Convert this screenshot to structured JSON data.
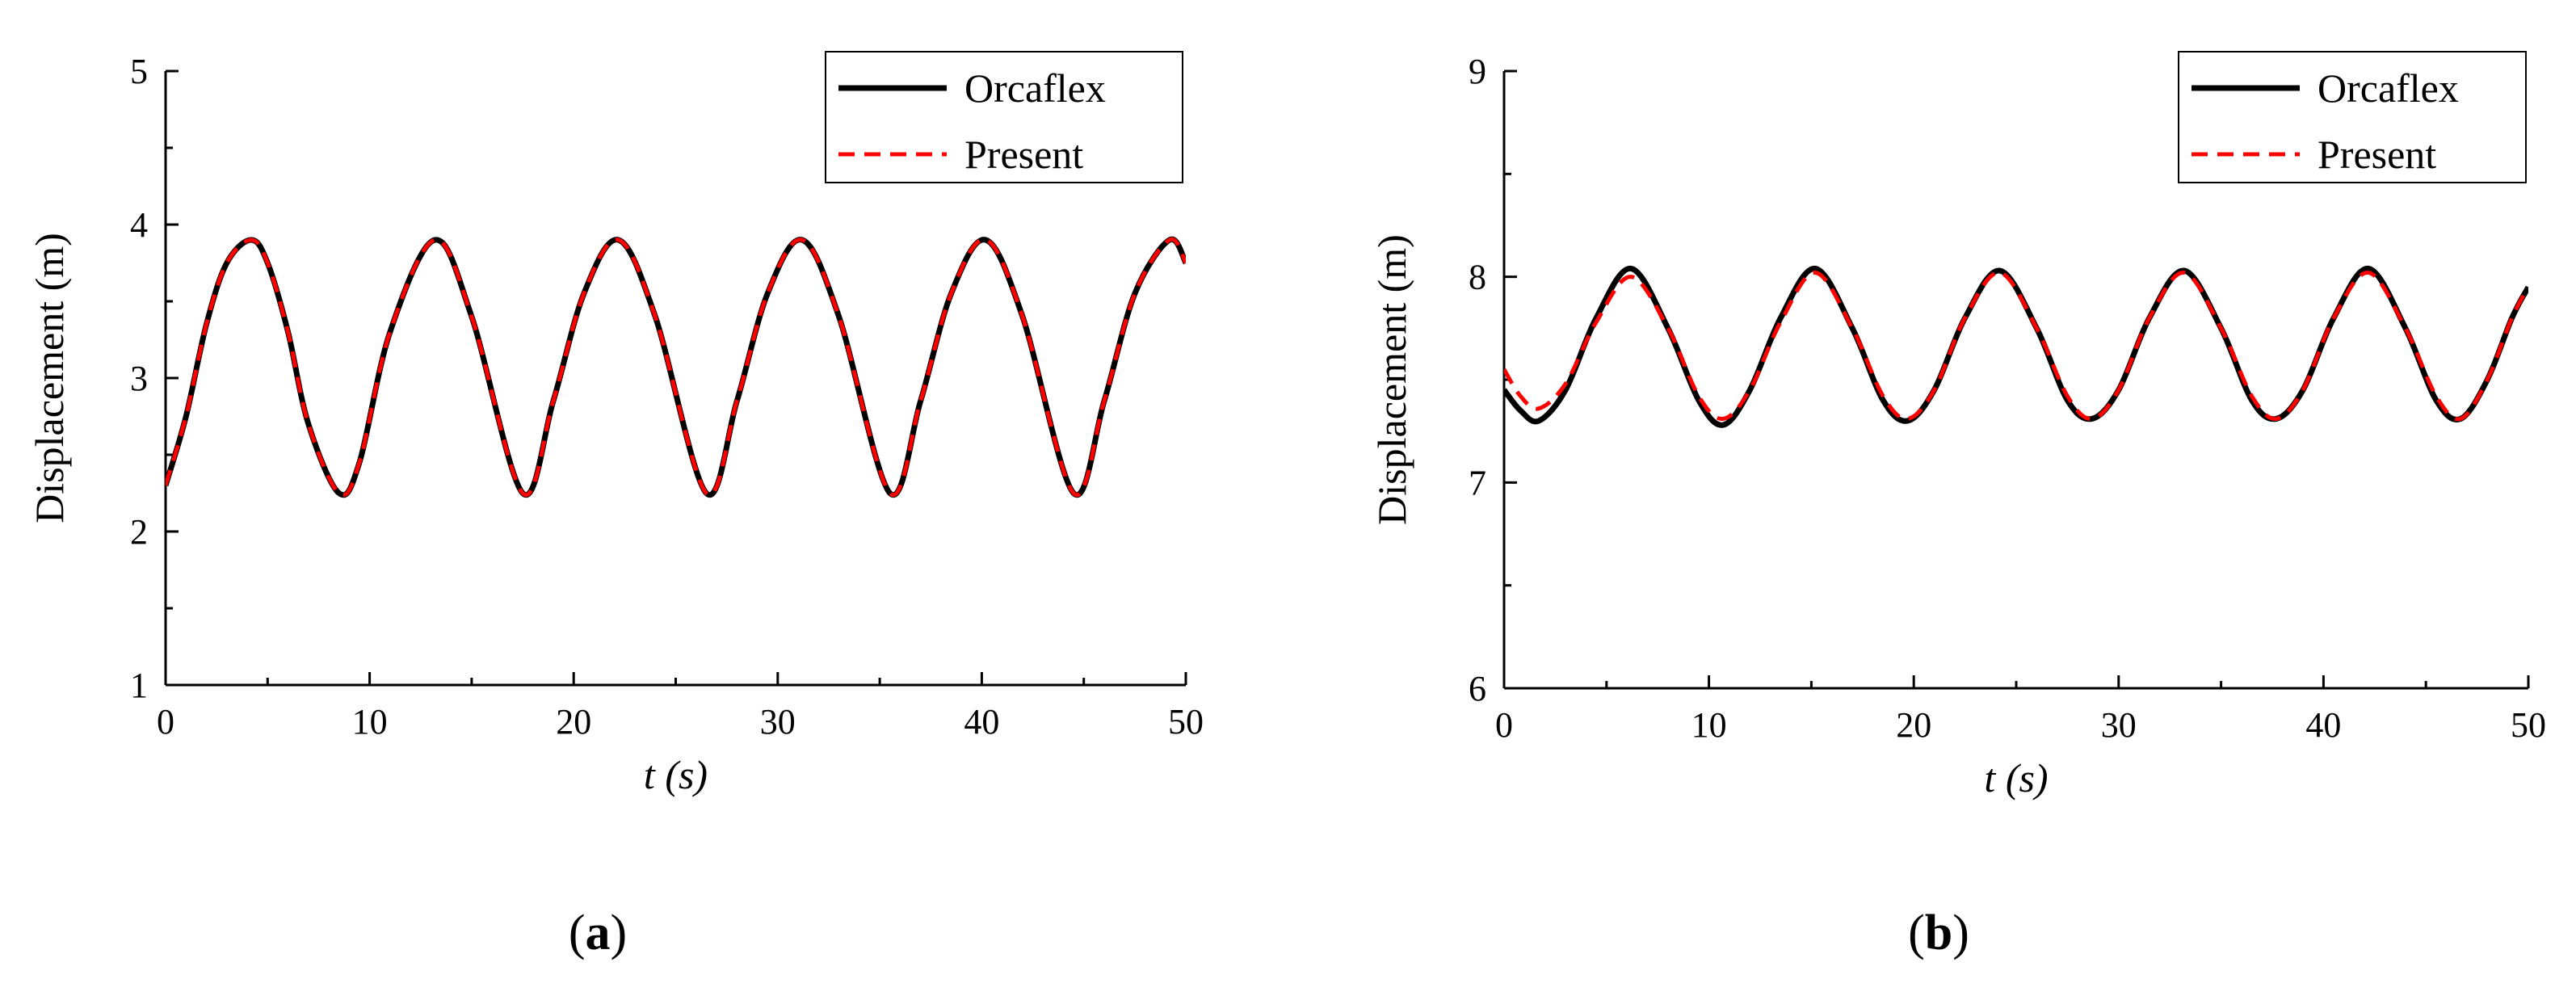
{
  "figure": {
    "panels": [
      "(a)",
      "(b)"
    ]
  },
  "chart_data": [
    {
      "type": "line",
      "panel_label": "a",
      "xlabel_var": "t",
      "xlabel_unit": "(s)",
      "ylabel": "Displacement (m)",
      "xlim": [
        0,
        50
      ],
      "ylim": [
        1,
        5
      ],
      "xticks": [
        0,
        10,
        20,
        30,
        40,
        50
      ],
      "yticks": [
        1,
        2,
        3,
        4,
        5
      ],
      "grid": false,
      "legend_position": "top-right",
      "series": [
        {
          "name": "Orcaflex",
          "color": "#000000",
          "style": "solid",
          "x": [
            0,
            1,
            2,
            3,
            4.2,
            5,
            6,
            7,
            8.5,
            9.5,
            11,
            13.2,
            15,
            17.5,
            19,
            20.5,
            22.2,
            24,
            26.5,
            28,
            29.5,
            31.2,
            33,
            35.5,
            37,
            38.5,
            40.2,
            42,
            44.5,
            46,
            47.5,
            49.2,
            50
          ],
          "y": [
            2.3,
            2.75,
            3.35,
            3.75,
            3.9,
            3.75,
            3.3,
            2.7,
            2.25,
            2.45,
            3.3,
            3.9,
            3.4,
            2.25,
            2.85,
            3.55,
            3.9,
            3.4,
            2.25,
            2.85,
            3.55,
            3.9,
            3.4,
            2.25,
            2.85,
            3.55,
            3.9,
            3.4,
            2.25,
            2.85,
            3.55,
            3.9,
            3.75
          ]
        },
        {
          "name": "Present",
          "color": "#ff0000",
          "style": "dashed",
          "x": [
            0,
            1,
            2,
            3,
            4.2,
            5,
            6,
            7,
            8.5,
            9.5,
            11,
            13.2,
            15,
            17.5,
            19,
            20.5,
            22.2,
            24,
            26.5,
            28,
            29.5,
            31.2,
            33,
            35.5,
            37,
            38.5,
            40.2,
            42,
            44.5,
            46,
            47.5,
            49.2,
            50
          ],
          "y": [
            2.3,
            2.75,
            3.35,
            3.75,
            3.9,
            3.75,
            3.3,
            2.7,
            2.25,
            2.45,
            3.3,
            3.9,
            3.4,
            2.25,
            2.85,
            3.55,
            3.9,
            3.4,
            2.25,
            2.85,
            3.55,
            3.9,
            3.4,
            2.25,
            2.85,
            3.55,
            3.9,
            3.4,
            2.25,
            2.85,
            3.55,
            3.9,
            3.75
          ]
        }
      ]
    },
    {
      "type": "line",
      "panel_label": "b",
      "xlabel_var": "t",
      "xlabel_unit": "(s)",
      "ylabel": "Displacement (m)",
      "xlim": [
        0,
        50
      ],
      "ylim": [
        6,
        9
      ],
      "xticks": [
        0,
        10,
        20,
        30,
        40,
        50
      ],
      "yticks": [
        6,
        7,
        8,
        9
      ],
      "grid": false,
      "legend_position": "top-right",
      "series": [
        {
          "name": "Orcaflex",
          "color": "#000000",
          "style": "solid",
          "x": [
            0,
            0.8,
            1.7,
            3,
            4.5,
            6.2,
            8,
            9.5,
            10.7,
            12,
            13.5,
            15.2,
            17,
            18.5,
            19.7,
            21,
            22.5,
            24.2,
            26,
            27.5,
            28.7,
            30,
            31.5,
            33.2,
            35,
            36.5,
            37.7,
            39,
            40.5,
            42.2,
            44,
            45.5,
            46.7,
            48,
            49.2,
            50
          ],
          "y": [
            7.45,
            7.35,
            7.3,
            7.45,
            7.8,
            8.04,
            7.75,
            7.4,
            7.28,
            7.45,
            7.8,
            8.04,
            7.75,
            7.4,
            7.3,
            7.45,
            7.8,
            8.03,
            7.75,
            7.4,
            7.31,
            7.45,
            7.8,
            8.03,
            7.75,
            7.4,
            7.31,
            7.45,
            7.8,
            8.04,
            7.75,
            7.4,
            7.31,
            7.5,
            7.8,
            7.95
          ]
        },
        {
          "name": "Present",
          "color": "#ff0000",
          "style": "dashed",
          "x": [
            0,
            0.8,
            1.7,
            3,
            4.5,
            6.2,
            8,
            9.5,
            10.7,
            12,
            13.5,
            15.2,
            17,
            18.5,
            19.7,
            21,
            22.5,
            24.2,
            26,
            27.5,
            28.7,
            30,
            31.5,
            33.2,
            35,
            36.5,
            37.7,
            39,
            40.5,
            42.2,
            44,
            45.5,
            46.7,
            48,
            49.2,
            50
          ],
          "y": [
            7.55,
            7.42,
            7.36,
            7.48,
            7.78,
            8.0,
            7.75,
            7.42,
            7.31,
            7.45,
            7.78,
            8.02,
            7.75,
            7.42,
            7.31,
            7.45,
            7.8,
            8.02,
            7.75,
            7.42,
            7.31,
            7.45,
            7.8,
            8.02,
            7.75,
            7.42,
            7.31,
            7.45,
            7.8,
            8.02,
            7.75,
            7.42,
            7.31,
            7.5,
            7.8,
            7.95
          ]
        }
      ]
    }
  ]
}
